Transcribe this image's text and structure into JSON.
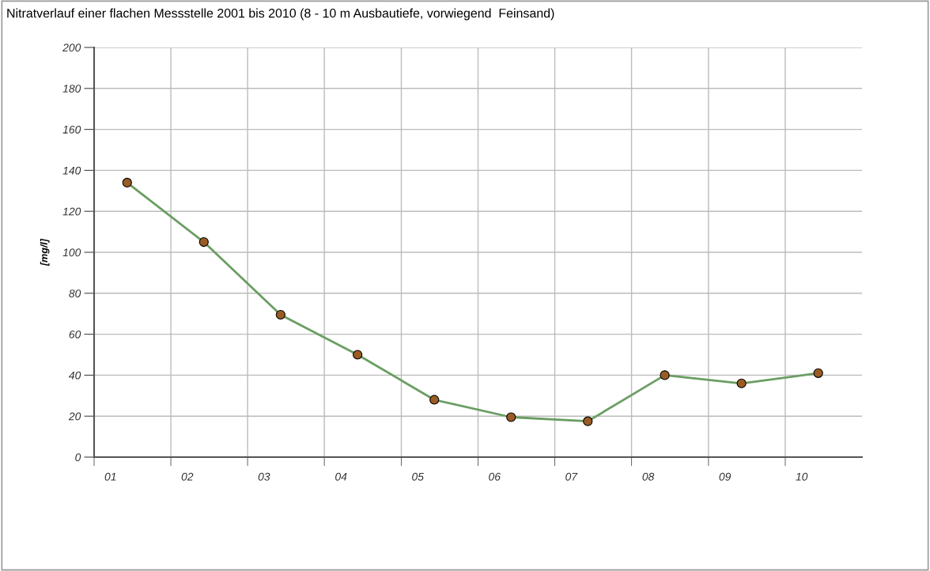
{
  "chart_data": {
    "type": "line",
    "title": "Nitratverlauf einer flachen Messstelle 2001 bis 2010 (8 - 10 m Ausbautiefe, vorwiegend  Feinsand)",
    "ylabel": "[mg/l]",
    "x": [
      "2001-06-07",
      "2002-06-07",
      "2003-06-07",
      "2004-06-07",
      "2005-06-07",
      "2006-06-07",
      "2007-06-07",
      "2008-06-07",
      "2009-06-07",
      "2010-06-07"
    ],
    "series": [
      {
        "color": "#6a9e62",
        "values": [
          134,
          105,
          69.5,
          50,
          28,
          19.5,
          17.5,
          40,
          36,
          41
        ]
      }
    ],
    "marker": "circle",
    "line_style": "solid",
    "xlim": [
      "2001-01-01",
      "2011-01-01"
    ],
    "xticks": [
      {
        "value": "2001-01-01",
        "label": null
      },
      {
        "value": "2002-01-01",
        "label": null
      },
      {
        "value": "2003-01-01",
        "label": null
      },
      {
        "value": "2004-01-01",
        "label": null
      },
      {
        "value": "2005-01-01",
        "label": null
      },
      {
        "value": "2006-01-01",
        "label": null
      },
      {
        "value": "2007-01-01",
        "label": null
      },
      {
        "value": "2008-01-01",
        "label": null
      },
      {
        "value": "2009-01-01",
        "label": null
      },
      {
        "value": "2010-01-01",
        "label": null
      },
      {
        "value": "2001-03-20",
        "label": "01"
      },
      {
        "value": "2002-03-20",
        "label": "02"
      },
      {
        "value": "2003-03-20",
        "label": "03"
      },
      {
        "value": "2004-03-20",
        "label": "04"
      },
      {
        "value": "2005-03-20",
        "label": "05"
      },
      {
        "value": "2006-03-20",
        "label": "06"
      },
      {
        "value": "2007-03-20",
        "label": "07"
      },
      {
        "value": "2008-03-20",
        "label": "08"
      },
      {
        "value": "2009-03-20",
        "label": "09"
      },
      {
        "value": "2010-03-20",
        "label": "10"
      }
    ],
    "ylim": [
      0,
      200
    ],
    "yticks": [
      0,
      20,
      40,
      60,
      80,
      100,
      120,
      140,
      160,
      180,
      200
    ],
    "grid": true
  }
}
